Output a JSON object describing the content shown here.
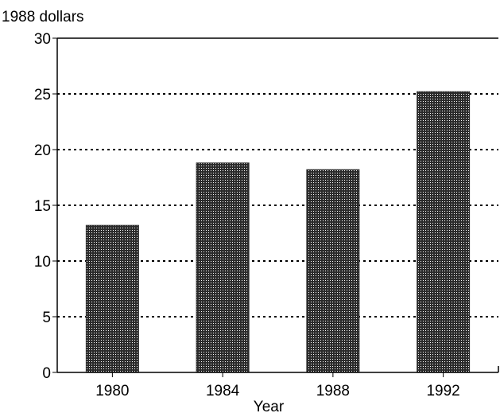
{
  "chart_data": {
    "type": "bar",
    "title": "",
    "ylabel": "1988 dollars",
    "xlabel": "Year",
    "categories": [
      "1980",
      "1984",
      "1988",
      "1992"
    ],
    "values": [
      13.2,
      18.8,
      18.2,
      25.2
    ],
    "ylim": [
      0,
      30
    ],
    "yticks": [
      0,
      5,
      10,
      15,
      20,
      25,
      30
    ],
    "grid": true,
    "legend": "none",
    "colors": {
      "bar_fill": "#2b2b2b",
      "bar_dot": "#ffffff",
      "grid": "#000000",
      "axis": "#000000"
    }
  }
}
